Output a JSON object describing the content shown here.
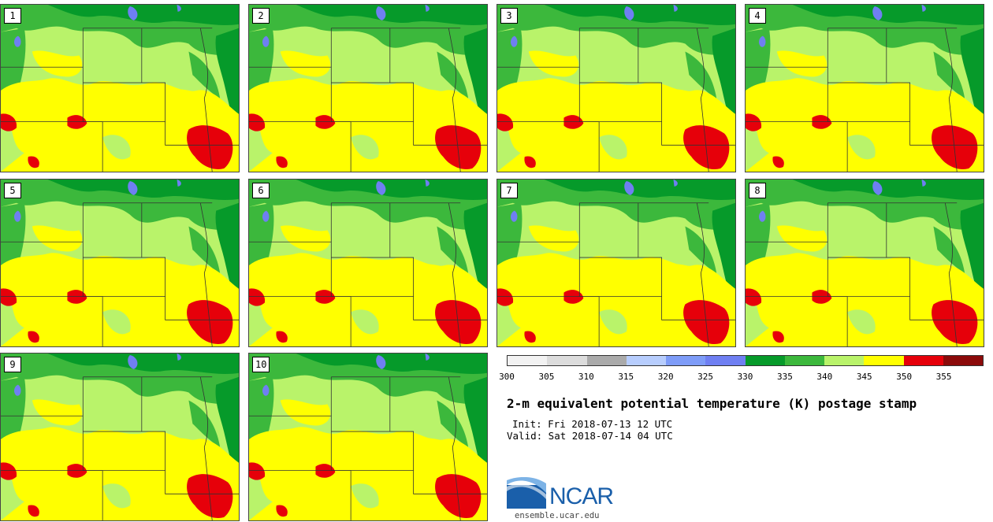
{
  "panels": [
    {
      "number": "1"
    },
    {
      "number": "2"
    },
    {
      "number": "3"
    },
    {
      "number": "4"
    },
    {
      "number": "5"
    },
    {
      "number": "6"
    },
    {
      "number": "7"
    },
    {
      "number": "8"
    },
    {
      "number": "9"
    },
    {
      "number": "10"
    }
  ],
  "colorbar": {
    "colors": [
      "#f2f2f2",
      "#dcdcdc",
      "#aaaaaa",
      "#b7cdfd",
      "#7e9cf8",
      "#6f7ff2",
      "#069a2a",
      "#3cb83c",
      "#b9f36a",
      "#ffff00",
      "#e6000a",
      "#8b0a0a"
    ],
    "ticks": [
      "300",
      "305",
      "310",
      "315",
      "320",
      "325",
      "330",
      "335",
      "340",
      "345",
      "350",
      "355"
    ]
  },
  "title": "2-m equivalent potential temperature (K) postage stamp",
  "init_text": "Init: Fri 2018-07-13 12 UTC",
  "valid_text": "Valid: Sat 2018-07-14 04 UTC",
  "logo_text": "NCAR",
  "url": "ensemble.ucar.edu"
}
